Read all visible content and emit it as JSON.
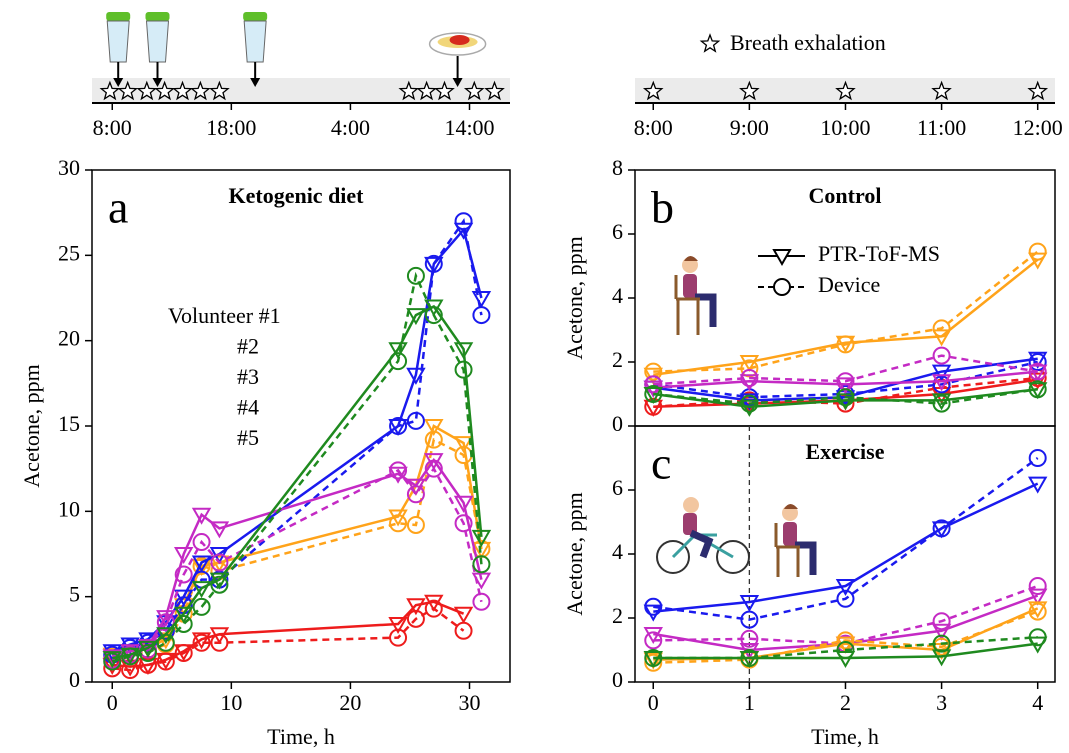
{
  "chart_data": [
    {
      "type": "timeline",
      "xlim": [
        -1.7,
        33.4
      ],
      "xticks": [
        {
          "value": 0,
          "label": "8:00"
        },
        {
          "value": 10,
          "label": "18:00"
        },
        {
          "value": 20,
          "label": "4:00"
        },
        {
          "value": 30,
          "label": "14:00"
        }
      ],
      "stars": [
        -0.2,
        1.3,
        2.9,
        4.4,
        5.9,
        7.4,
        9,
        24.9,
        26.4,
        27.9,
        30.4,
        32.1
      ],
      "shakes": [
        0.5,
        3.8,
        12
      ],
      "meals": [
        29
      ]
    },
    {
      "type": "timeline",
      "xlim": [
        -0.19,
        4.18
      ],
      "legend_label": "Breath exhalation",
      "xticks": [
        {
          "value": 0,
          "label": "8:00"
        },
        {
          "value": 1,
          "label": "9:00"
        },
        {
          "value": 2,
          "label": "10:00"
        },
        {
          "value": 3,
          "label": "11:00"
        },
        {
          "value": 4,
          "label": "12:00"
        }
      ],
      "stars": [
        0,
        1,
        2,
        3,
        4
      ]
    },
    {
      "type": "line",
      "panel_label": "a",
      "title": "Ketogenic diet",
      "xlabel": "Time, h",
      "ylabel": "Acetone, ppm",
      "xlim": [
        -1.7,
        33.4
      ],
      "ylim": [
        0,
        30
      ],
      "xticks": [
        0,
        10,
        20,
        30
      ],
      "yticks": [
        0,
        5,
        10,
        15,
        20,
        25,
        30
      ],
      "x": [
        0,
        1.5,
        3,
        4.5,
        6,
        7.5,
        9,
        24,
        25.5,
        27,
        29.5,
        31
      ],
      "series": [
        {
          "name": "Volunteer #1",
          "color": "#ffa31a",
          "values": [
            1.6,
            1.8,
            2,
            2.5,
            4.5,
            6.8,
            7,
            9.7,
            11.5,
            15,
            14,
            7.8
          ],
          "device": [
            1.4,
            1.6,
            1.8,
            2.2,
            4,
            6.8,
            6.5,
            9.3,
            9.2,
            14.2,
            13.3,
            7.8
          ]
        },
        {
          "name": "#2",
          "color": "#ee1c1c",
          "values": [
            1,
            0.9,
            1,
            1.3,
            1.8,
            2.5,
            2.8,
            3.4,
            4.5,
            4.7,
            4,
            null
          ],
          "device": [
            0.8,
            0.7,
            1,
            1.2,
            1.7,
            2.3,
            2.3,
            2.6,
            3.7,
            4.3,
            3,
            null
          ]
        },
        {
          "name": "#3",
          "color": "#1a1aee",
          "values": [
            1.8,
            2.2,
            2.5,
            3.5,
            5,
            7,
            7.5,
            15,
            18,
            24.5,
            26.5,
            22.5
          ],
          "device": [
            1.6,
            2,
            2.3,
            3,
            4.5,
            6,
            6,
            15,
            15.3,
            24.5,
            27,
            21.5
          ]
        },
        {
          "name": "#4",
          "color": "#c42ac4",
          "values": [
            1.5,
            1.8,
            2.1,
            3.8,
            7.5,
            9.8,
            9,
            12.2,
            11.5,
            13,
            10.5,
            6
          ],
          "device": [
            1.3,
            1.6,
            1.9,
            3.5,
            6.3,
            8.2,
            7,
            12.4,
            11,
            12.5,
            9.3,
            4.7
          ]
        },
        {
          "name": "#5",
          "color": "#1f8a1f",
          "values": [
            1.4,
            1.6,
            2,
            2.8,
            4,
            5.5,
            6,
            19.5,
            21.5,
            22,
            19.5,
            8.5
          ],
          "device": [
            1.2,
            1.5,
            1.7,
            2.3,
            3.4,
            4.4,
            5.7,
            18.8,
            23.8,
            21.5,
            18.3,
            6.9
          ]
        }
      ]
    },
    {
      "type": "line",
      "panel_label": "b",
      "title": "Control",
      "ylabel": "Acetone, ppm",
      "methods": [
        "PTR-ToF-MS",
        "Device"
      ],
      "xlim": [
        -0.19,
        4.18
      ],
      "ylim": [
        0,
        8
      ],
      "yticks": [
        0,
        2,
        4,
        6,
        8
      ],
      "x": [
        0,
        1,
        2,
        3,
        4
      ],
      "series": [
        {
          "color": "#ffa31a",
          "values": [
            1.6,
            2.0,
            2.6,
            2.8,
            5.2
          ],
          "device": [
            1.7,
            1.8,
            2.55,
            3.05,
            5.45
          ]
        },
        {
          "color": "#ee1c1c",
          "values": [
            0.6,
            0.7,
            0.8,
            1.0,
            1.45
          ],
          "device": [
            0.6,
            0.8,
            0.7,
            1.2,
            1.5
          ]
        },
        {
          "color": "#1a1aee",
          "values": [
            1.2,
            0.8,
            0.9,
            1.7,
            2.1
          ],
          "device": [
            1.3,
            0.9,
            1.0,
            1.3,
            2.0
          ]
        },
        {
          "color": "#c42ac4",
          "values": [
            1.2,
            1.4,
            1.3,
            1.4,
            1.7
          ],
          "device": [
            1.3,
            1.5,
            1.4,
            2.2,
            1.7
          ]
        },
        {
          "color": "#1f8a1f",
          "values": [
            1.0,
            0.6,
            0.8,
            0.8,
            1.15
          ],
          "device": [
            1.0,
            0.7,
            0.9,
            0.7,
            1.15
          ]
        }
      ]
    },
    {
      "type": "line",
      "panel_label": "c",
      "title": "Exercise",
      "xlabel": "Time, h",
      "ylabel": "Acetone, ppm",
      "xlim": [
        -0.19,
        4.18
      ],
      "ylim": [
        0,
        8
      ],
      "xticks": [
        0,
        1,
        2,
        3,
        4
      ],
      "yticks": [
        0,
        2,
        4,
        6
      ],
      "vline": 1,
      "x": [
        0,
        1,
        2,
        3,
        4
      ],
      "series": [
        {
          "color": "#1a1aee",
          "values": [
            2.2,
            2.5,
            3.0,
            4.8,
            6.2
          ],
          "device": [
            2.35,
            1.95,
            2.6,
            4.8,
            7.0
          ]
        },
        {
          "color": "#c42ac4",
          "values": [
            1.5,
            1.0,
            1.2,
            1.6,
            2.7
          ],
          "device": [
            1.3,
            1.35,
            1.2,
            1.9,
            3.0
          ]
        },
        {
          "color": "#ffa31a",
          "values": [
            0.7,
            0.75,
            1.2,
            1.0,
            2.3
          ],
          "device": [
            0.6,
            0.7,
            1.3,
            1.1,
            2.2
          ]
        },
        {
          "color": "#1f8a1f",
          "values": [
            0.75,
            0.75,
            0.75,
            0.8,
            1.2
          ],
          "device": [
            0.75,
            0.75,
            1.0,
            1.2,
            1.4
          ]
        }
      ]
    }
  ]
}
